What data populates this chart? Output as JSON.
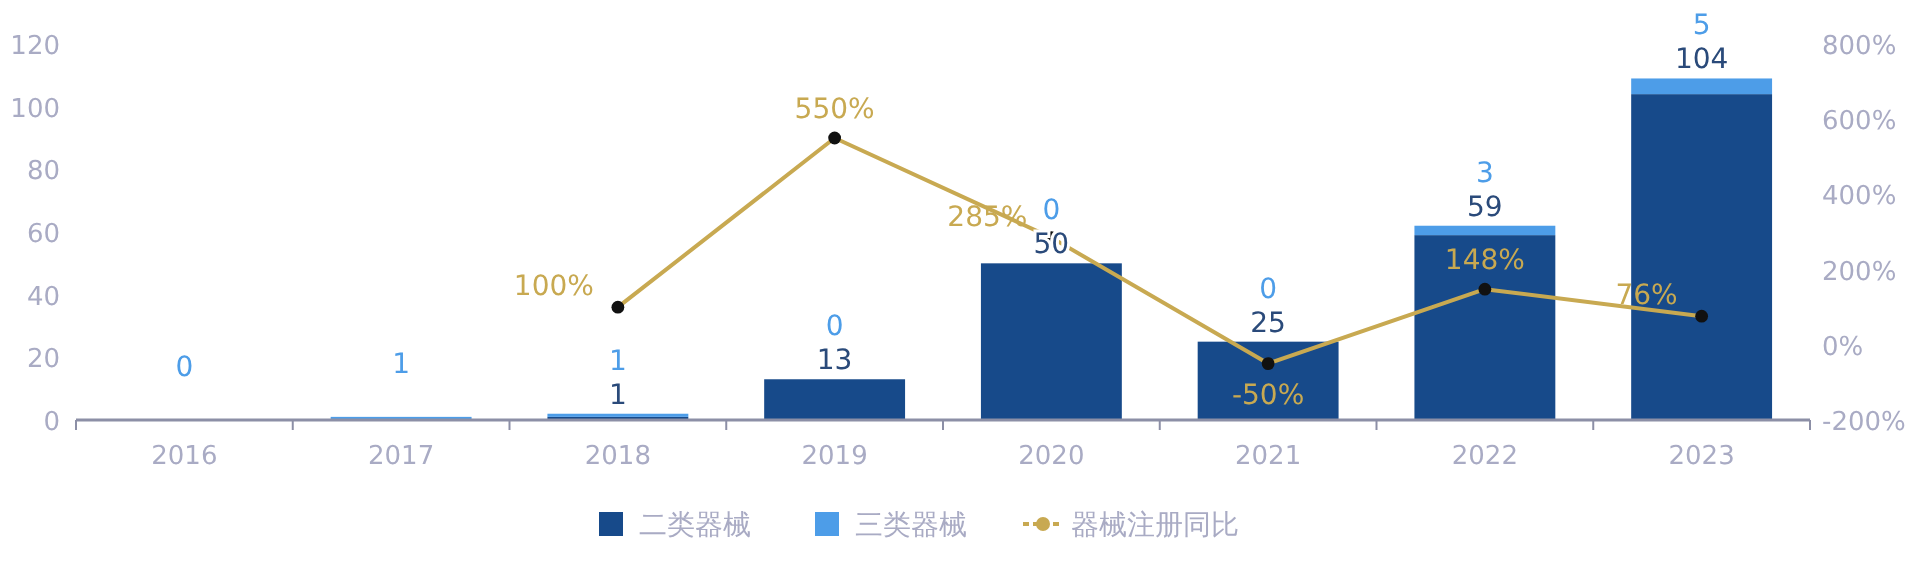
{
  "chart_data": {
    "type": "bar",
    "stacked": true,
    "categories": [
      "2016",
      "2017",
      "2018",
      "2019",
      "2020",
      "2021",
      "2022",
      "2023"
    ],
    "series": [
      {
        "name": "二类器械",
        "color": "#174a8a",
        "values": [
          0,
          0,
          1,
          13,
          50,
          25,
          59,
          104
        ],
        "value_labels": [
          null,
          null,
          "1",
          "13",
          "50",
          "25",
          "59",
          "104"
        ]
      },
      {
        "name": "三类器械",
        "color": "#4d9de8",
        "values": [
          0,
          1,
          1,
          0,
          0,
          0,
          3,
          5
        ],
        "value_labels": [
          "0",
          "1",
          "1",
          "0",
          "0",
          "0",
          "3",
          "5"
        ]
      },
      {
        "name": "器械注册同比",
        "type": "line",
        "axis": "y2",
        "color": "#c8a951",
        "marker": "circle",
        "values": [
          null,
          null,
          100,
          550,
          285,
          -50,
          148,
          76
        ],
        "value_labels": [
          null,
          null,
          "100%",
          "550%",
          "285%",
          "-50%",
          "148%",
          "76%"
        ]
      }
    ],
    "ylim": [
      0,
      120
    ],
    "yticks": [
      0,
      20,
      40,
      60,
      80,
      100,
      120
    ],
    "y2lim": [
      -200,
      800
    ],
    "y2ticks": [
      {
        "value": -200,
        "label": "-200%"
      },
      {
        "value": 0,
        "label": "0%"
      },
      {
        "value": 200,
        "label": "200%"
      },
      {
        "value": 400,
        "label": "400%"
      },
      {
        "value": 600,
        "label": "600%"
      },
      {
        "value": 800,
        "label": "800%"
      }
    ],
    "grid": false,
    "legend": "bottom"
  }
}
